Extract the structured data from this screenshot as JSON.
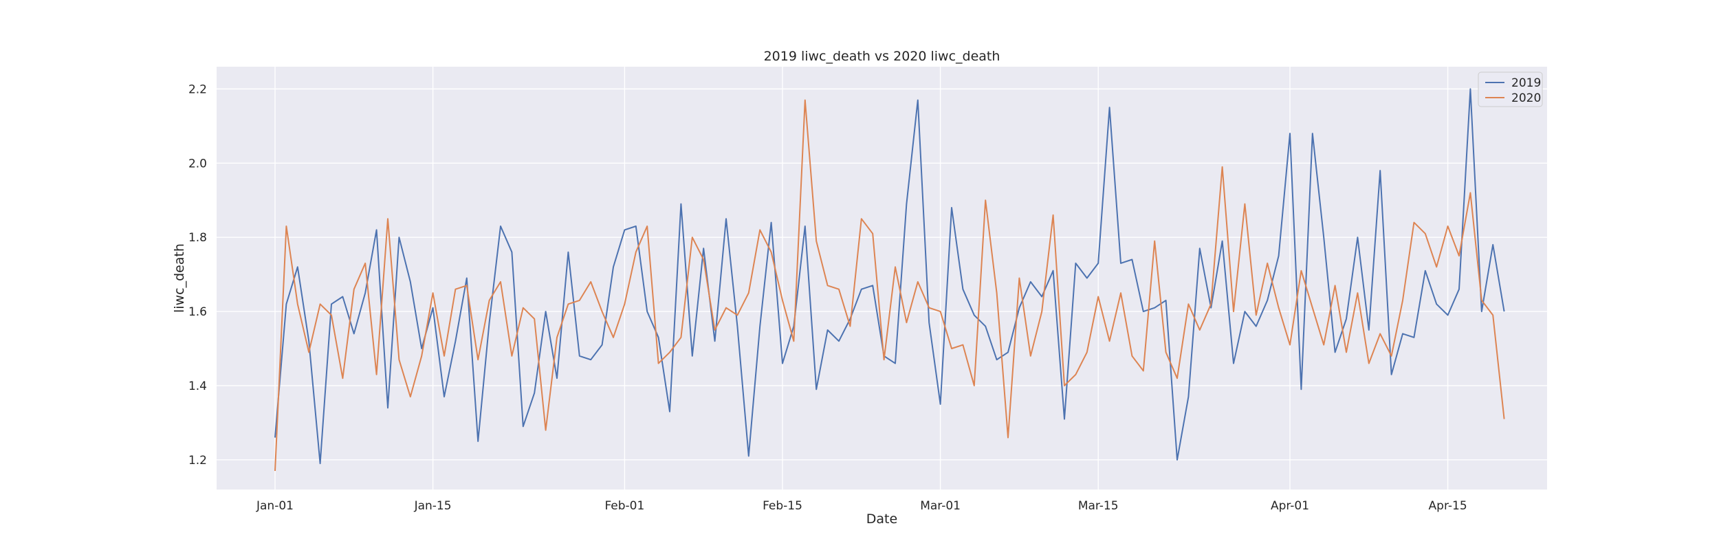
{
  "chart_data": {
    "type": "line",
    "title": "2019 liwc_death vs 2020 liwc_death",
    "xlabel": "Date",
    "ylabel": "liwc_death",
    "x_start": "Jan-01",
    "x_ticks": [
      "Jan-01",
      "Jan-15",
      "Feb-01",
      "Feb-15",
      "Mar-01",
      "Mar-15",
      "Apr-01",
      "Apr-15"
    ],
    "y_ticks": [
      "1.2",
      "1.4",
      "1.6",
      "1.8",
      "2.0",
      "2.2"
    ],
    "ylim": [
      1.12,
      2.26
    ],
    "grid": true,
    "legend_position": "top-right",
    "colors": {
      "2019": "#4c72b0",
      "2020": "#dd8452",
      "background": "#eaeaf2",
      "grid": "#ffffff"
    },
    "series": [
      {
        "name": "2019",
        "values": [
          1.26,
          1.62,
          1.72,
          1.52,
          1.19,
          1.62,
          1.64,
          1.54,
          1.65,
          1.82,
          1.34,
          1.8,
          1.68,
          1.5,
          1.61,
          1.37,
          1.52,
          1.69,
          1.25,
          1.57,
          1.83,
          1.76,
          1.29,
          1.38,
          1.6,
          1.42,
          1.76,
          1.48,
          1.47,
          1.51,
          1.72,
          1.82,
          1.83,
          1.6,
          1.53,
          1.33,
          1.89,
          1.48,
          1.77,
          1.52,
          1.85,
          1.56,
          1.21,
          1.56,
          1.84,
          1.46,
          1.56,
          1.83,
          1.39,
          1.55,
          1.52,
          1.58,
          1.66,
          1.67,
          1.48,
          1.46,
          1.89,
          2.17,
          1.57,
          1.35,
          1.88,
          1.66,
          1.59,
          1.56,
          1.47,
          1.49,
          1.61,
          1.68,
          1.64,
          1.71,
          1.31,
          1.73,
          1.69,
          1.73,
          2.15,
          1.73,
          1.74,
          1.6,
          1.61,
          1.63,
          1.2,
          1.37,
          1.77,
          1.61,
          1.79,
          1.46,
          1.6,
          1.56,
          1.63,
          1.75,
          2.08,
          1.39,
          2.08,
          1.8,
          1.49,
          1.58,
          1.8,
          1.55,
          1.98,
          1.43,
          1.54,
          1.53,
          1.71,
          1.62,
          1.59,
          1.66,
          2.2,
          1.6,
          1.78,
          1.6
        ]
      },
      {
        "name": "2020",
        "values": [
          1.17,
          1.83,
          1.62,
          1.49,
          1.62,
          1.59,
          1.42,
          1.66,
          1.73,
          1.43,
          1.85,
          1.47,
          1.37,
          1.48,
          1.65,
          1.48,
          1.66,
          1.67,
          1.47,
          1.63,
          1.68,
          1.48,
          1.61,
          1.58,
          1.28,
          1.53,
          1.62,
          1.63,
          1.68,
          1.6,
          1.53,
          1.62,
          1.76,
          1.83,
          1.46,
          1.49,
          1.53,
          1.8,
          1.74,
          1.55,
          1.61,
          1.59,
          1.65,
          1.82,
          1.76,
          1.63,
          1.52,
          2.17,
          1.79,
          1.67,
          1.66,
          1.56,
          1.85,
          1.81,
          1.47,
          1.72,
          1.57,
          1.68,
          1.61,
          1.6,
          1.5,
          1.51,
          1.4,
          1.9,
          1.65,
          1.26,
          1.69,
          1.48,
          1.6,
          1.86,
          1.4,
          1.43,
          1.49,
          1.64,
          1.52,
          1.65,
          1.48,
          1.44,
          1.79,
          1.49,
          1.42,
          1.62,
          1.55,
          1.62,
          1.99,
          1.6,
          1.89,
          1.59,
          1.73,
          1.61,
          1.51,
          1.71,
          1.61,
          1.51,
          1.67,
          1.49,
          1.65,
          1.46,
          1.54,
          1.48,
          1.63,
          1.84,
          1.81,
          1.72,
          1.83,
          1.75,
          1.92,
          1.63,
          1.59,
          1.31
        ]
      }
    ]
  }
}
